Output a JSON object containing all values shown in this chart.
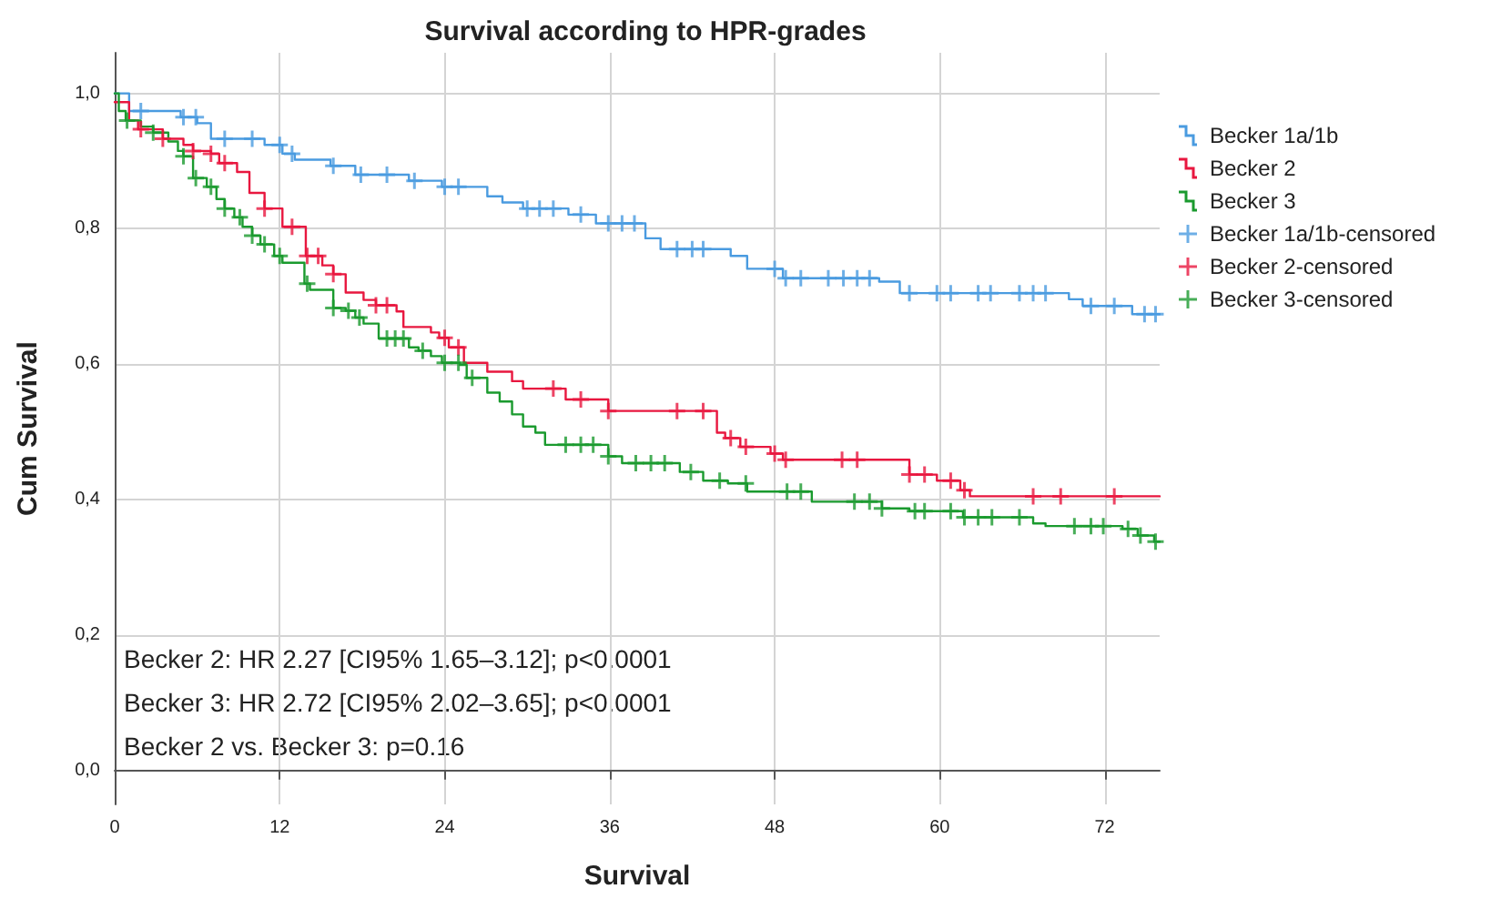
{
  "chart_data": {
    "type": "step",
    "title": "Survival according to HPR-grades",
    "xlabel": "Survival",
    "ylabel": "Cum Survival",
    "annotations": [
      "Becker 2: HR 2.27 [CI95% 1.65–3.12]; p<0.0001",
      "Becker 3: HR 2.72 [CI95% 2.02–3.65]; p<0.0001",
      "Becker 2 vs. Becker 3: p=0.16"
    ],
    "xlim": [
      0,
      76
    ],
    "xticks": [
      0,
      12,
      24,
      36,
      48,
      60,
      72
    ],
    "ylim": [
      -0.05,
      1.06
    ],
    "yticks": [
      {
        "value": 0,
        "label": "0,0"
      },
      {
        "value": 0.2,
        "label": "0,2"
      },
      {
        "value": 0.4,
        "label": "0,4"
      },
      {
        "value": 0.6,
        "label": "0,6"
      },
      {
        "value": 0.8,
        "label": "0,8"
      },
      {
        "value": 1,
        "label": "1,0"
      }
    ],
    "grid": true,
    "legend": "right",
    "line_style": "solid",
    "series": [
      {
        "name": "Becker 1a/1b",
        "marker": "none",
        "color": "#4a9be0",
        "x": [
          0,
          1.05,
          4.8,
          6,
          7,
          10.9,
          12.2,
          13.1,
          15.7,
          17.5,
          21.4,
          23.8,
          27.1,
          28.2,
          29.7,
          33,
          35,
          38.6,
          39.7,
          44.8,
          46,
          48.6,
          55.6,
          57.1,
          69.4,
          70.4,
          74,
          76
        ],
        "values": [
          1.0,
          0.974,
          0.965,
          0.956,
          0.933,
          0.924,
          0.911,
          0.902,
          0.893,
          0.88,
          0.871,
          0.862,
          0.848,
          0.839,
          0.83,
          0.821,
          0.808,
          0.786,
          0.77,
          0.76,
          0.741,
          0.727,
          0.722,
          0.705,
          0.696,
          0.686,
          0.674,
          0.674
        ]
      },
      {
        "name": "Becker 2",
        "marker": "none",
        "color": "#e8173f",
        "x": [
          0,
          1.05,
          1.7,
          3.5,
          5,
          5.7,
          7,
          7.6,
          8.9,
          9.8,
          10.9,
          12.2,
          13.9,
          15.1,
          15.9,
          16.8,
          18.1,
          19,
          20.5,
          21,
          23,
          23.6,
          24.3,
          25.4,
          27.1,
          28.9,
          29.7,
          32.8,
          35.9,
          43.8,
          44.4,
          45.5,
          47.7,
          48.6,
          57.8,
          59.8,
          61.5,
          62.2,
          76
        ],
        "values": [
          0.987,
          0.96,
          0.947,
          0.933,
          0.924,
          0.915,
          0.911,
          0.897,
          0.884,
          0.853,
          0.83,
          0.803,
          0.76,
          0.746,
          0.733,
          0.706,
          0.695,
          0.687,
          0.678,
          0.655,
          0.647,
          0.639,
          0.625,
          0.602,
          0.589,
          0.575,
          0.564,
          0.548,
          0.531,
          0.499,
          0.491,
          0.478,
          0.468,
          0.459,
          0.437,
          0.428,
          0.414,
          0.405,
          0.405
        ]
      },
      {
        "name": "Becker 3",
        "marker": "none",
        "color": "#1a9a2e",
        "x": [
          0,
          0.3,
          0.8,
          1.9,
          2.8,
          3.9,
          4.6,
          5,
          5.7,
          6.7,
          7.4,
          8,
          8.7,
          9.3,
          10,
          10.6,
          11.6,
          12.2,
          13.8,
          14.2,
          15.9,
          16.8,
          17.5,
          18.1,
          19.2,
          21.4,
          22.1,
          23,
          23.8,
          25.1,
          25.6,
          27.1,
          28,
          28.9,
          29.7,
          30.6,
          31.3,
          35.9,
          36.9,
          41.1,
          42.8,
          44.6,
          46,
          50.7,
          55.8,
          57.8,
          61.7,
          66.8,
          67.7,
          73.3,
          74.4,
          75.6,
          76
        ],
        "values": [
          1.0,
          0.974,
          0.96,
          0.951,
          0.942,
          0.929,
          0.915,
          0.907,
          0.875,
          0.862,
          0.844,
          0.83,
          0.817,
          0.803,
          0.79,
          0.777,
          0.76,
          0.75,
          0.719,
          0.71,
          0.683,
          0.679,
          0.669,
          0.66,
          0.638,
          0.625,
          0.62,
          0.612,
          0.602,
          0.599,
          0.58,
          0.558,
          0.545,
          0.526,
          0.508,
          0.499,
          0.481,
          0.464,
          0.454,
          0.441,
          0.428,
          0.424,
          0.412,
          0.397,
          0.387,
          0.383,
          0.374,
          0.365,
          0.361,
          0.357,
          0.347,
          0.338,
          0.338
        ]
      },
      {
        "name": "Becker 1a/1b-censored",
        "type": "scatter",
        "marker": "cross",
        "color": "#4a9be0",
        "x": [
          1.9,
          5,
          5.9,
          8,
          10,
          12,
          12.9,
          15.9,
          17.9,
          19.8,
          21.8,
          24,
          25,
          30,
          30.9,
          31.9,
          33.9,
          35.9,
          36.9,
          37.8,
          40.9,
          42,
          42.8,
          48,
          48.8,
          49.9,
          51.9,
          53,
          54,
          54.9,
          57.8,
          59.8,
          60.8,
          62.8,
          63.7,
          65.8,
          66.8,
          67.7,
          71,
          72.7,
          74.9,
          75.7
        ],
        "values": [
          0.974,
          0.965,
          0.965,
          0.933,
          0.933,
          0.924,
          0.911,
          0.893,
          0.88,
          0.88,
          0.871,
          0.862,
          0.862,
          0.83,
          0.83,
          0.83,
          0.821,
          0.808,
          0.808,
          0.808,
          0.77,
          0.77,
          0.77,
          0.741,
          0.727,
          0.727,
          0.727,
          0.727,
          0.727,
          0.727,
          0.705,
          0.705,
          0.705,
          0.705,
          0.705,
          0.705,
          0.705,
          0.705,
          0.686,
          0.686,
          0.674,
          0.674
        ]
      },
      {
        "name": "Becker 2-censored",
        "type": "scatter",
        "marker": "cross",
        "color": "#e8173f",
        "x": [
          1.9,
          3.5,
          5.7,
          7,
          8,
          10.9,
          12.9,
          14,
          14.8,
          15.9,
          19,
          19.8,
          24,
          25,
          31.9,
          33.9,
          35.9,
          40.9,
          42.8,
          44.8,
          45.9,
          48,
          48.8,
          52.9,
          54,
          57.8,
          58.9,
          60.8,
          61.8,
          66.8,
          68.8,
          72.7
        ],
        "values": [
          0.947,
          0.933,
          0.915,
          0.911,
          0.897,
          0.83,
          0.803,
          0.76,
          0.76,
          0.733,
          0.687,
          0.687,
          0.639,
          0.625,
          0.564,
          0.548,
          0.531,
          0.531,
          0.531,
          0.491,
          0.478,
          0.468,
          0.459,
          0.459,
          0.459,
          0.437,
          0.437,
          0.428,
          0.414,
          0.405,
          0.405,
          0.405
        ]
      },
      {
        "name": "Becker 3-censored",
        "type": "scatter",
        "marker": "cross",
        "color": "#1a9a2e",
        "x": [
          0.9,
          2.8,
          5,
          5.9,
          7,
          8,
          9.1,
          10,
          10.9,
          12,
          14,
          15.9,
          17,
          17.8,
          19.8,
          20.4,
          21,
          22.4,
          24,
          25,
          26,
          32.8,
          33.9,
          34.8,
          35.9,
          37.9,
          39,
          40,
          41.9,
          44,
          45.9,
          48.9,
          49.9,
          53.8,
          54.9,
          55.8,
          58.2,
          58.9,
          60.8,
          61.8,
          62.8,
          63.8,
          65.8,
          69.8,
          71,
          71.9,
          73.7,
          74.6,
          75.7
        ],
        "values": [
          0.96,
          0.942,
          0.907,
          0.875,
          0.862,
          0.83,
          0.817,
          0.79,
          0.777,
          0.76,
          0.719,
          0.683,
          0.679,
          0.669,
          0.638,
          0.638,
          0.638,
          0.62,
          0.602,
          0.602,
          0.58,
          0.481,
          0.481,
          0.481,
          0.464,
          0.454,
          0.454,
          0.454,
          0.441,
          0.428,
          0.424,
          0.412,
          0.412,
          0.397,
          0.397,
          0.387,
          0.383,
          0.383,
          0.383,
          0.374,
          0.374,
          0.374,
          0.374,
          0.361,
          0.361,
          0.361,
          0.357,
          0.347,
          0.338
        ]
      }
    ]
  }
}
